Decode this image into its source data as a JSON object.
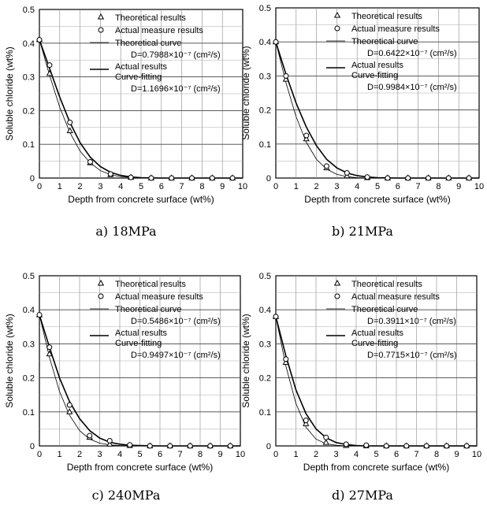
{
  "figure": {
    "panels": [
      {
        "caption": "a) 18MPa",
        "legend": {
          "theoretical_results": "Theoretical results",
          "actual_measure_results": "Actual measure results",
          "theoretical_curve": "Theoretical curve",
          "theoretical_D": "D=0.7988×10⁻⁷ (cm²/s)",
          "actual_curve_line1": "Actual results",
          "actual_curve_line2": "Curve-fitting",
          "actual_D": "D=1.1696×10⁻⁷ (cm²/s)"
        }
      },
      {
        "caption": "b) 21MPa",
        "legend": {
          "theoretical_results": "Theoretical results",
          "actual_measure_results": "Actual measure results",
          "theoretical_curve": "Theoretical curve",
          "theoretical_D": "D=0.6422×10⁻⁷ (cm²/s)",
          "actual_curve_line1": "Actual results",
          "actual_curve_line2": "Curve-fitting",
          "actual_D": "D=0.9984×10⁻⁷ (cm²/s)"
        }
      },
      {
        "caption": "c) 240MPa",
        "legend": {
          "theoretical_results": "Theoretical results",
          "actual_measure_results": "Actual measure results",
          "theoretical_curve": "Theoretical curve",
          "theoretical_D": "D=0.5486×10⁻⁷ (cm²/s)",
          "actual_curve_line1": "Actual results",
          "actual_curve_line2": "Curve-fitting",
          "actual_D": "D=0.9497×10⁻⁷ (cm²/s)"
        }
      },
      {
        "caption": "d) 27MPa",
        "legend": {
          "theoretical_results": "Theoretical results",
          "actual_measure_results": "Actual measure results",
          "theoretical_curve": "Theoretical curve",
          "theoretical_D": "D=0.3911×10⁻⁷ (cm²/s)",
          "actual_curve_line1": "Actual results",
          "actual_curve_line2": "Curve-fitting",
          "actual_D": "D=0.7715×10⁻⁷ (cm²/s)"
        }
      }
    ]
  },
  "chart_data": [
    {
      "type": "scatter",
      "title": "a) 18MPa",
      "xlabel": "Depth from concrete surface (wt%)",
      "ylabel": "Soluble chloride (wt%)",
      "xlim": [
        0,
        10
      ],
      "ylim": [
        0,
        0.5
      ],
      "xticks": [
        "0",
        "1",
        "2",
        "3",
        "4",
        "5",
        "6",
        "7",
        "8",
        "9",
        "10"
      ],
      "yticks": [
        "0",
        "0.1",
        "0.2",
        "0.3",
        "0.4",
        "0.5"
      ],
      "grid": true,
      "series": [
        {
          "name": "Theoretical results",
          "marker": "triangle",
          "x": [
            0,
            0.5,
            1.5,
            2.5,
            3.5,
            4.5,
            5.5,
            6.5,
            7.5,
            8.5,
            9.5
          ],
          "y": [
            0.41,
            0.31,
            0.14,
            0.045,
            0.01,
            0.002,
            0,
            0,
            0,
            0,
            0
          ]
        },
        {
          "name": "Actual measure results",
          "marker": "circle",
          "x": [
            0,
            0.5,
            1.5,
            2.5,
            3.5,
            4.5,
            5.5,
            6.5,
            7.5,
            8.5,
            9.5
          ],
          "y": [
            0.41,
            0.335,
            0.165,
            0.048,
            0.012,
            0.002,
            0,
            0,
            0,
            0,
            0
          ]
        },
        {
          "name": "Theoretical curve",
          "line": "thin",
          "x": [
            0,
            0.5,
            1,
            1.5,
            2,
            2.5,
            3,
            3.5,
            4,
            4.5,
            5,
            6,
            7,
            8,
            9,
            10
          ],
          "y": [
            0.41,
            0.305,
            0.21,
            0.135,
            0.08,
            0.045,
            0.022,
            0.01,
            0.004,
            0.002,
            0.001,
            0,
            0,
            0,
            0,
            0
          ]
        },
        {
          "name": "Actual results Curve-fitting",
          "line": "thick",
          "x": [
            0,
            0.5,
            1,
            1.5,
            2,
            2.5,
            3,
            3.5,
            4,
            4.5,
            5,
            6,
            7,
            8,
            9,
            10
          ],
          "y": [
            0.41,
            0.325,
            0.24,
            0.165,
            0.105,
            0.062,
            0.034,
            0.017,
            0.008,
            0.003,
            0.001,
            0,
            0,
            0,
            0,
            0
          ]
        }
      ]
    },
    {
      "type": "scatter",
      "title": "b) 21MPa",
      "xlabel": "Depth from concrete surface (wt%)",
      "ylabel": "Soluble chloride (wt%)",
      "xlim": [
        0,
        10
      ],
      "ylim": [
        0,
        0.5
      ],
      "xticks": [
        "0",
        "1",
        "2",
        "3",
        "4",
        "5",
        "6",
        "7",
        "8",
        "9",
        "10"
      ],
      "yticks": [
        "0",
        "0.1",
        "0.2",
        "0.3",
        "0.4",
        "0.5"
      ],
      "grid": true,
      "series": [
        {
          "name": "Theoretical results",
          "marker": "triangle",
          "x": [
            0,
            0.5,
            1.5,
            2.5,
            3.5,
            4.5,
            5.5,
            6.5,
            7.5,
            8.5,
            9.5
          ],
          "y": [
            0.4,
            0.29,
            0.115,
            0.03,
            0.006,
            0.001,
            0,
            0,
            0,
            0,
            0
          ]
        },
        {
          "name": "Actual measure results",
          "marker": "circle",
          "x": [
            0,
            0.5,
            1.5,
            2.5,
            3.5,
            4.5,
            5.5,
            6.5,
            7.5,
            8.5,
            9.5
          ],
          "y": [
            0.4,
            0.3,
            0.125,
            0.035,
            0.015,
            0.003,
            0,
            0,
            0,
            0,
            0
          ]
        },
        {
          "name": "Theoretical curve",
          "line": "thin",
          "x": [
            0,
            0.5,
            1,
            1.5,
            2,
            2.5,
            3,
            3.5,
            4,
            4.5,
            5,
            6,
            7,
            8,
            9,
            10
          ],
          "y": [
            0.4,
            0.28,
            0.18,
            0.105,
            0.055,
            0.026,
            0.011,
            0.004,
            0.001,
            0,
            0,
            0,
            0,
            0,
            0,
            0
          ]
        },
        {
          "name": "Actual results Curve-fitting",
          "line": "thick",
          "x": [
            0,
            0.5,
            1,
            1.5,
            2,
            2.5,
            3,
            3.5,
            4,
            4.5,
            5,
            6,
            7,
            8,
            9,
            10
          ],
          "y": [
            0.4,
            0.305,
            0.22,
            0.15,
            0.095,
            0.055,
            0.03,
            0.015,
            0.007,
            0.003,
            0.001,
            0,
            0,
            0,
            0,
            0
          ]
        }
      ]
    },
    {
      "type": "scatter",
      "title": "c) 240MPa",
      "xlabel": "Depth from concrete surface (wt%)",
      "ylabel": "Soluble chloride (wt%)",
      "xlim": [
        0,
        10
      ],
      "ylim": [
        0,
        0.5
      ],
      "xticks": [
        "0",
        "1",
        "2",
        "3",
        "4",
        "5",
        "6",
        "7",
        "8",
        "9",
        "10"
      ],
      "yticks": [
        "0",
        "0.1",
        "0.2",
        "0.3",
        "0.4",
        "0.5"
      ],
      "grid": true,
      "series": [
        {
          "name": "Theoretical results",
          "marker": "triangle",
          "x": [
            0,
            0.5,
            1.5,
            2.5,
            3.5,
            4.5,
            5.5,
            6.5,
            7.5,
            8.5,
            9.5
          ],
          "y": [
            0.385,
            0.27,
            0.1,
            0.025,
            0.005,
            0.001,
            0,
            0,
            0,
            0,
            0
          ]
        },
        {
          "name": "Actual measure results",
          "marker": "circle",
          "x": [
            0,
            0.5,
            1.5,
            2.5,
            3.5,
            4.5,
            5.5,
            6.5,
            7.5,
            8.5,
            9.5
          ],
          "y": [
            0.385,
            0.29,
            0.12,
            0.03,
            0.015,
            0.003,
            0,
            0,
            0,
            0,
            0
          ]
        },
        {
          "name": "Theoretical curve",
          "line": "thin",
          "x": [
            0,
            0.5,
            1,
            1.5,
            2,
            2.5,
            3,
            3.5,
            4,
            4.5,
            5,
            6,
            7,
            8,
            9,
            10
          ],
          "y": [
            0.385,
            0.26,
            0.16,
            0.09,
            0.045,
            0.02,
            0.008,
            0.003,
            0.001,
            0,
            0,
            0,
            0,
            0,
            0,
            0
          ]
        },
        {
          "name": "Actual results Curve-fitting",
          "line": "thick",
          "x": [
            0,
            0.5,
            1,
            1.5,
            2,
            2.5,
            3,
            3.5,
            4,
            4.5,
            5,
            6,
            7,
            8,
            9,
            10
          ],
          "y": [
            0.385,
            0.29,
            0.2,
            0.13,
            0.08,
            0.045,
            0.023,
            0.011,
            0.005,
            0.002,
            0.001,
            0,
            0,
            0,
            0,
            0
          ]
        }
      ]
    },
    {
      "type": "scatter",
      "title": "d) 27MPa",
      "xlabel": "Depth from concrete surface (wt%)",
      "ylabel": "Soluble chloride (wt%)",
      "xlim": [
        0,
        10
      ],
      "ylim": [
        0,
        0.5
      ],
      "xticks": [
        "0",
        "1",
        "2",
        "3",
        "4",
        "5",
        "6",
        "7",
        "8",
        "9",
        "10"
      ],
      "yticks": [
        "0",
        "0.1",
        "0.2",
        "0.3",
        "0.4",
        "0.5"
      ],
      "grid": true,
      "series": [
        {
          "name": "Theoretical results",
          "marker": "triangle",
          "x": [
            0,
            0.5,
            1.5,
            2.5,
            3.5,
            4.5,
            5.5,
            6.5,
            7.5,
            8.5,
            9.5
          ],
          "y": [
            0.38,
            0.245,
            0.065,
            0.01,
            0.001,
            0,
            0,
            0,
            0,
            0,
            0
          ]
        },
        {
          "name": "Actual measure results",
          "marker": "circle",
          "x": [
            0,
            0.5,
            1.5,
            2.5,
            3.5,
            4.5,
            5.5,
            6.5,
            7.5,
            8.5,
            9.5
          ],
          "y": [
            0.38,
            0.255,
            0.075,
            0.025,
            0.005,
            0.002,
            0,
            0,
            0,
            0,
            0
          ]
        },
        {
          "name": "Theoretical curve",
          "line": "thin",
          "x": [
            0,
            0.5,
            1,
            1.5,
            2,
            2.5,
            3,
            3.5,
            4,
            4.5,
            5,
            6,
            7,
            8,
            9,
            10
          ],
          "y": [
            0.38,
            0.235,
            0.125,
            0.055,
            0.02,
            0.006,
            0.002,
            0,
            0,
            0,
            0,
            0,
            0,
            0,
            0,
            0
          ]
        },
        {
          "name": "Actual results Curve-fitting",
          "line": "thick",
          "x": [
            0,
            0.5,
            1,
            1.5,
            2,
            2.5,
            3,
            3.5,
            4,
            4.5,
            5,
            6,
            7,
            8,
            9,
            10
          ],
          "y": [
            0.38,
            0.265,
            0.165,
            0.095,
            0.05,
            0.024,
            0.01,
            0.004,
            0.001,
            0,
            0,
            0,
            0,
            0,
            0,
            0
          ]
        }
      ]
    }
  ]
}
